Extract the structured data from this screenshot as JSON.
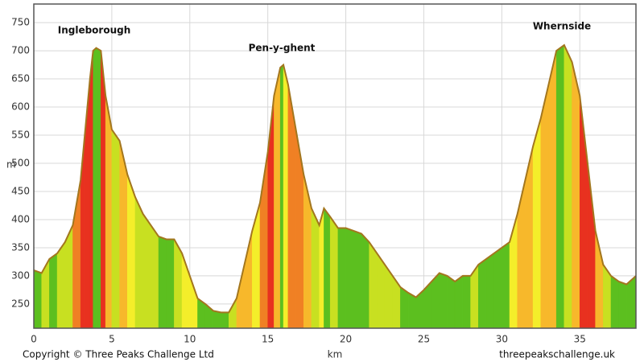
{
  "chart_data": {
    "type": "elevation",
    "y_label": "m",
    "x_label": "km",
    "annotations": [
      "Ingleborough",
      "Pen-y-ghent",
      "Whernside"
    ],
    "footer_left": "Copyright © Three Peaks Challenge Ltd",
    "footer_right": "threepeakschallenge.uk",
    "x": [
      0,
      0.5,
      1,
      1.5,
      2,
      2.5,
      3,
      3.3,
      3.6,
      3.8,
      4,
      4.3,
      4.6,
      5,
      5.5,
      6,
      6.5,
      7,
      7.5,
      8,
      8.5,
      9,
      9.5,
      10,
      10.5,
      11,
      11.5,
      12,
      12.5,
      13,
      13.5,
      14,
      14.5,
      15,
      15.4,
      15.8,
      16,
      16.3,
      16.8,
      17.3,
      17.8,
      18.3,
      18.6,
      19,
      19.5,
      20,
      20.5,
      21,
      21.5,
      22,
      22.5,
      23,
      23.5,
      24,
      24.5,
      25,
      25.5,
      26,
      26.5,
      27,
      27.5,
      28,
      28.5,
      29,
      29.5,
      30,
      30.5,
      31,
      31.5,
      32,
      32.5,
      33,
      33.5,
      34,
      34.5,
      35,
      35.5,
      36,
      36.5,
      37,
      37.5,
      38,
      38.6
    ],
    "values": [
      310,
      305,
      330,
      340,
      360,
      390,
      470,
      560,
      650,
      700,
      705,
      700,
      620,
      560,
      540,
      480,
      440,
      410,
      390,
      370,
      365,
      365,
      340,
      300,
      260,
      250,
      238,
      235,
      235,
      260,
      320,
      380,
      430,
      520,
      620,
      670,
      675,
      640,
      560,
      480,
      420,
      390,
      420,
      405,
      385,
      385,
      380,
      375,
      360,
      340,
      320,
      300,
      280,
      270,
      262,
      275,
      290,
      305,
      300,
      290,
      300,
      300,
      320,
      330,
      340,
      350,
      360,
      410,
      470,
      530,
      580,
      640,
      700,
      710,
      680,
      620,
      500,
      380,
      320,
      300,
      290,
      285,
      300
    ],
    "gradient_colors": [
      "#5cbf1f",
      "#c8e021",
      "#f4ee2a",
      "#f7b82b",
      "#f08024",
      "#e8311f"
    ],
    "line_color": "#a3761e",
    "xlim": [
      0,
      38.6
    ],
    "ylim": [
      207,
      783
    ],
    "xticks": [
      0,
      5,
      10,
      15,
      20,
      25,
      30,
      35
    ],
    "yticks": [
      250,
      300,
      350,
      400,
      450,
      500,
      550,
      600,
      650,
      700,
      750
    ],
    "grid": true
  }
}
